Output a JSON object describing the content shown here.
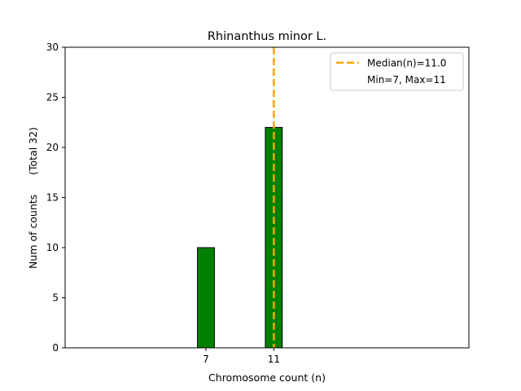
{
  "chart_data": {
    "type": "bar",
    "title": "Rhinanthus minor L.",
    "xlabel": "Chromosome count (n)",
    "ylabel": "Num of counts      (Total 32)",
    "xlim": [
      -1.3,
      22.5
    ],
    "ylim": [
      0,
      30
    ],
    "yticks": [
      0,
      5,
      10,
      15,
      20,
      25,
      30
    ],
    "xticks": [
      7,
      11
    ],
    "bar_width": 1.0,
    "bars": [
      {
        "x": 7,
        "value": 10
      },
      {
        "x": 11,
        "value": 22
      }
    ],
    "baseline_to": 15,
    "median": {
      "x": 11.0,
      "label": "Median(n)=11.0"
    },
    "legend": {
      "placement": "top-right",
      "entries": [
        "Median(n)=11.0",
        "Min=7, Max=11"
      ]
    },
    "colors": {
      "bar_fill": "#008000",
      "bar_edge": "#000000",
      "median_line": "#ffa500"
    }
  }
}
